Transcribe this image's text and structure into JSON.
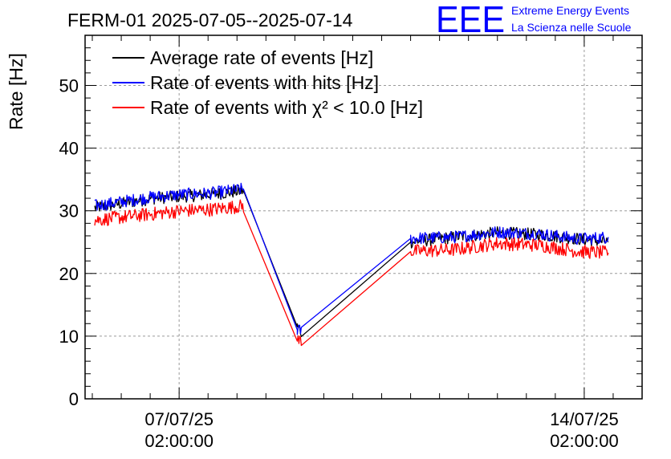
{
  "title": "FERM-01 2025-07-05--2025-07-14",
  "brand": {
    "logo": "EEE",
    "line1": "Extreme Energy Events",
    "line2": "La Scienza nelle Scuole",
    "color": "#0000ff"
  },
  "chart_data": {
    "type": "line",
    "ylabel": "Rate [Hz]",
    "xlabel": "",
    "ylim": [
      0,
      58
    ],
    "xlim": [
      "2025-07-05 11:00",
      "2025-07-15 02:00"
    ],
    "yticks": [
      "0",
      "10",
      "20",
      "30",
      "40",
      "50"
    ],
    "yticks_values": [
      0,
      10,
      20,
      30,
      40,
      50
    ],
    "xticks": [
      {
        "date": "07/07/25",
        "time": "02:00:00",
        "value": "2025-07-07 02:00"
      },
      {
        "date": "14/07/25",
        "time": "02:00:00",
        "value": "2025-07-14 02:00"
      }
    ],
    "grid": true,
    "legend_position": "top-left",
    "series": [
      {
        "name": "Average rate of events [Hz]",
        "color": "#000000",
        "points": [
          [
            "2025-07-05 15:00",
            30.5
          ],
          [
            "2025-07-06 03:00",
            31.2
          ],
          [
            "2025-07-06 15:00",
            32.0
          ],
          [
            "2025-07-07 03:00",
            32.3
          ],
          [
            "2025-07-07 15:00",
            32.6
          ],
          [
            "2025-07-08 05:00",
            33.2
          ],
          [
            "2025-07-09 03:00",
            11.5
          ],
          [
            "2025-07-09 05:00",
            10.5
          ],
          [
            "2025-07-11 02:00",
            25.0
          ],
          [
            "2025-07-11 20:00",
            25.8
          ],
          [
            "2025-07-12 14:00",
            26.5
          ],
          [
            "2025-07-13 08:00",
            26.2
          ],
          [
            "2025-07-14 00:00",
            25.5
          ],
          [
            "2025-07-14 12:00",
            25.0
          ]
        ],
        "noise": 1.0
      },
      {
        "name": "Rate of events with hits [Hz]",
        "color": "#0000ff",
        "points": [
          [
            "2025-07-05 15:00",
            30.8
          ],
          [
            "2025-07-06 03:00",
            31.5
          ],
          [
            "2025-07-06 15:00",
            32.2
          ],
          [
            "2025-07-07 03:00",
            32.6
          ],
          [
            "2025-07-07 15:00",
            32.8
          ],
          [
            "2025-07-08 05:00",
            33.5
          ],
          [
            "2025-07-09 03:00",
            11.0
          ],
          [
            "2025-07-09 05:00",
            10.8
          ],
          [
            "2025-07-11 02:00",
            25.6
          ],
          [
            "2025-07-11 20:00",
            25.8
          ],
          [
            "2025-07-12 14:00",
            26.6
          ],
          [
            "2025-07-13 08:00",
            26.3
          ],
          [
            "2025-07-14 00:00",
            25.5
          ],
          [
            "2025-07-14 12:00",
            25.8
          ]
        ],
        "noise": 1.0
      },
      {
        "name": "Rate of events with χ² < 10.0 [Hz]",
        "color": "#ff0000",
        "points": [
          [
            "2025-07-05 15:00",
            28.5
          ],
          [
            "2025-07-06 03:00",
            29.0
          ],
          [
            "2025-07-06 15:00",
            29.5
          ],
          [
            "2025-07-07 03:00",
            30.0
          ],
          [
            "2025-07-07 15:00",
            30.2
          ],
          [
            "2025-07-08 05:00",
            30.8
          ],
          [
            "2025-07-09 03:00",
            9.2
          ],
          [
            "2025-07-09 05:00",
            9.5
          ],
          [
            "2025-07-11 02:00",
            23.5
          ],
          [
            "2025-07-11 20:00",
            23.8
          ],
          [
            "2025-07-12 14:00",
            24.8
          ],
          [
            "2025-07-13 08:00",
            24.5
          ],
          [
            "2025-07-14 00:00",
            23.5
          ],
          [
            "2025-07-14 12:00",
            23.3
          ]
        ],
        "noise": 1.1
      }
    ]
  }
}
